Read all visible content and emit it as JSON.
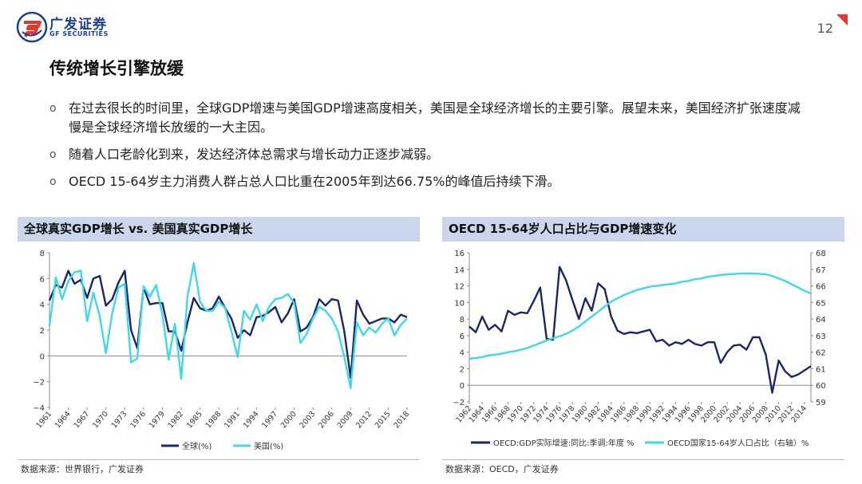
{
  "brand": {
    "name_cn": "广发证券",
    "name_en": "GF SECURITIES",
    "page_number": "12",
    "colors": {
      "brand_blue": "#1b3f8f",
      "accent_red": "#e23b2e",
      "header_bg": "#c9d6ec"
    }
  },
  "slide": {
    "title": "传统增长引擎放缓",
    "bullets": [
      "在过去很长的时间里，全球GDP增速与美国GDP增速高度相关，美国是全球经济增长的主要引擎。展望未来，美国经济扩张速度减慢是全球经济增长放缓的一大主因。",
      "随着人口老龄化到来，发达经济体总需求与增长动力正逐步减弱。",
      "OECD 15-64岁主力消费人群占总人口比重在2005年到达66.75%的峰值后持续下滑。"
    ],
    "bullet_marker": "o"
  },
  "chart_data": [
    {
      "type": "line",
      "title": "全球真实GDP增长 vs. 美国真实GDP增长",
      "source": "数据来源：世界银行，广发证券",
      "x": [
        1961,
        1962,
        1963,
        1964,
        1965,
        1966,
        1967,
        1968,
        1969,
        1970,
        1971,
        1972,
        1973,
        1974,
        1975,
        1976,
        1977,
        1978,
        1979,
        1980,
        1981,
        1982,
        1983,
        1984,
        1985,
        1986,
        1987,
        1988,
        1989,
        1990,
        1991,
        1992,
        1993,
        1994,
        1995,
        1996,
        1997,
        1998,
        1999,
        2000,
        2001,
        2002,
        2003,
        2004,
        2005,
        2006,
        2007,
        2008,
        2009,
        2010,
        2011,
        2012,
        2013,
        2014,
        2015,
        2016,
        2017,
        2018
      ],
      "x_ticks": [
        1961,
        1964,
        1967,
        1970,
        1973,
        1976,
        1979,
        1982,
        1985,
        1988,
        1991,
        1994,
        1997,
        2000,
        2003,
        2006,
        2009,
        2012,
        2015,
        2018
      ],
      "ylim": [
        -4,
        8
      ],
      "y_ticks": [
        -4,
        -2,
        0,
        2,
        4,
        6,
        8
      ],
      "y_tick_labels": [
        "−4",
        "−2",
        "0",
        "2",
        "4",
        "6",
        "8"
      ],
      "series": [
        {
          "name": "全球(%)",
          "color": "#1c2566",
          "values": [
            4.3,
            5.5,
            5.3,
            6.6,
            5.6,
            5.9,
            4.5,
            6.0,
            6.2,
            3.9,
            4.4,
            5.7,
            6.6,
            2.0,
            0.6,
            5.3,
            4.0,
            4.1,
            4.1,
            1.9,
            1.9,
            0.4,
            2.6,
            4.5,
            3.7,
            3.5,
            3.7,
            4.6,
            3.7,
            2.9,
            1.4,
            2.0,
            1.6,
            3.0,
            3.1,
            3.4,
            3.8,
            2.6,
            3.3,
            4.4,
            1.9,
            2.2,
            3.0,
            4.4,
            3.9,
            4.4,
            4.3,
            1.9,
            -1.7,
            4.3,
            3.2,
            2.5,
            2.7,
            2.9,
            2.9,
            2.6,
            3.2,
            3.0
          ]
        },
        {
          "name": "美国(%)",
          "color": "#3fd8e8",
          "values": [
            2.3,
            6.1,
            4.4,
            5.8,
            6.5,
            6.6,
            2.7,
            4.9,
            3.1,
            0.2,
            3.3,
            5.3,
            5.6,
            -0.5,
            -0.2,
            5.4,
            4.6,
            5.5,
            3.2,
            -0.3,
            2.5,
            -1.8,
            4.6,
            7.2,
            4.2,
            3.5,
            3.5,
            4.2,
            3.7,
            1.9,
            -0.1,
            3.5,
            2.8,
            4.0,
            2.7,
            3.8,
            4.4,
            4.5,
            4.8,
            4.1,
            1.0,
            1.7,
            2.9,
            3.8,
            3.5,
            2.9,
            1.9,
            -0.1,
            -2.5,
            2.6,
            1.6,
            2.2,
            1.8,
            2.5,
            2.9,
            1.6,
            2.4,
            2.9
          ]
        }
      ]
    },
    {
      "type": "line",
      "title": "OECD 15-64岁人口占比与GDP增速变化",
      "source": "数据来源：OECD，广发证券",
      "x": [
        1962,
        1963,
        1964,
        1965,
        1966,
        1967,
        1968,
        1969,
        1970,
        1971,
        1972,
        1973,
        1974,
        1975,
        1976,
        1977,
        1978,
        1979,
        1980,
        1981,
        1982,
        1983,
        1984,
        1985,
        1986,
        1987,
        1988,
        1989,
        1990,
        1991,
        1992,
        1993,
        1994,
        1995,
        1996,
        1997,
        1998,
        1999,
        2000,
        2001,
        2002,
        2003,
        2004,
        2005,
        2006,
        2007,
        2008,
        2009,
        2010,
        2011,
        2012,
        2013,
        2014,
        2015
      ],
      "x_ticks": [
        1962,
        1964,
        1966,
        1968,
        1970,
        1972,
        1974,
        1976,
        1978,
        1980,
        1982,
        1984,
        1986,
        1988,
        1990,
        1992,
        1994,
        1996,
        1998,
        2000,
        2002,
        2004,
        2006,
        2008,
        2010,
        2012,
        2014
      ],
      "ylim": [
        -2,
        16
      ],
      "y_ticks": [
        -2,
        0,
        2,
        4,
        6,
        8,
        10,
        12,
        14,
        16
      ],
      "y_tick_labels": [
        "−2",
        "0",
        "2",
        "4",
        "6",
        "8",
        "10",
        "12",
        "14",
        "16"
      ],
      "y2lim": [
        59,
        68
      ],
      "y2_ticks": [
        59,
        60,
        61,
        62,
        63,
        64,
        65,
        66,
        67,
        68
      ],
      "series": [
        {
          "name": "OECD:GDP实际增速:同比:季调:年度 %",
          "axis": "left",
          "color": "#1c2566",
          "values": [
            7.1,
            6.4,
            8.3,
            6.7,
            7.3,
            6.5,
            9.0,
            8.5,
            8.8,
            8.7,
            10.2,
            11.8,
            5.6,
            5.5,
            14.3,
            12.7,
            10.3,
            8.0,
            10.5,
            9.0,
            12.3,
            11.6,
            8.3,
            6.6,
            6.2,
            6.4,
            6.3,
            6.5,
            6.7,
            5.3,
            5.5,
            4.8,
            5.2,
            5.0,
            5.5,
            5.0,
            4.8,
            5.2,
            5.2,
            2.7,
            4.0,
            4.8,
            4.9,
            4.3,
            5.8,
            5.8,
            3.7,
            -0.9,
            3.0,
            1.7,
            1.0,
            1.3,
            1.8,
            2.3
          ]
        },
        {
          "name": "OECD国家15-64岁人口占比（右轴）%",
          "axis": "right",
          "color": "#3fd8e8",
          "values": [
            61.6,
            61.65,
            61.7,
            61.8,
            61.85,
            61.9,
            62.0,
            62.05,
            62.15,
            62.25,
            62.4,
            62.55,
            62.7,
            62.85,
            62.95,
            63.1,
            63.3,
            63.55,
            63.85,
            64.15,
            64.45,
            64.75,
            65.05,
            65.25,
            65.45,
            65.6,
            65.75,
            65.85,
            65.95,
            66.0,
            66.05,
            66.1,
            66.15,
            66.25,
            66.3,
            66.4,
            66.45,
            66.55,
            66.6,
            66.65,
            66.7,
            66.72,
            66.74,
            66.75,
            66.75,
            66.73,
            66.7,
            66.6,
            66.45,
            66.3,
            66.1,
            65.9,
            65.7,
            65.55
          ]
        }
      ]
    }
  ]
}
